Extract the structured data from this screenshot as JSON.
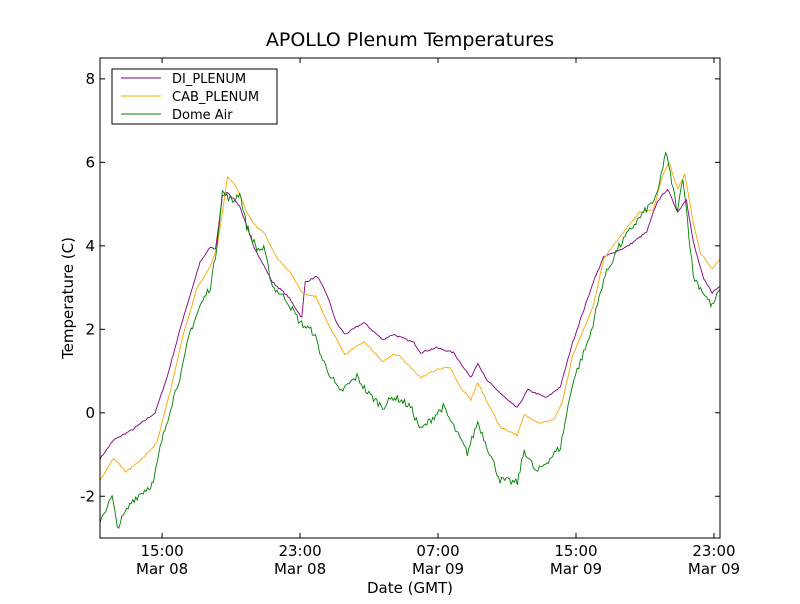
{
  "chart_data": {
    "type": "line",
    "title": "APOLLO Plenum Temperatures",
    "xlabel": "Date (GMT)",
    "ylabel": "Temperature (C)",
    "x_units": "hours since Mar 08 00:00 GMT",
    "xlim": [
      11.4,
      47.35
    ],
    "ylim": [
      -3,
      8.5
    ],
    "grid": false,
    "legend_position": "top-left",
    "x_ticks": [
      {
        "value": 15,
        "time": "15:00",
        "date": "Mar 08"
      },
      {
        "value": 23,
        "time": "23:00",
        "date": "Mar 08"
      },
      {
        "value": 31,
        "time": "07:00",
        "date": "Mar 09"
      },
      {
        "value": 39,
        "time": "15:00",
        "date": "Mar 09"
      },
      {
        "value": 47,
        "time": "23:00",
        "date": "Mar 09"
      }
    ],
    "y_ticks": [
      {
        "value": -2,
        "label": "-2"
      },
      {
        "value": 0,
        "label": "0"
      },
      {
        "value": 2,
        "label": "2"
      },
      {
        "value": 4,
        "label": "4"
      },
      {
        "value": 6,
        "label": "6"
      },
      {
        "value": 8,
        "label": "8"
      }
    ],
    "series": [
      {
        "name": "DI_PLENUM",
        "color": "#800080",
        "noise": 0.04,
        "points": [
          [
            11.4,
            -1.1
          ],
          [
            12.2,
            -0.65
          ],
          [
            13.3,
            -0.4
          ],
          [
            14.6,
            0
          ],
          [
            15.3,
            0.87
          ],
          [
            16.2,
            2.24
          ],
          [
            17.2,
            3.6
          ],
          [
            17.8,
            3.97
          ],
          [
            18.1,
            3.92
          ],
          [
            18.5,
            5.19
          ],
          [
            18.8,
            5.29
          ],
          [
            19.5,
            4.95
          ],
          [
            20.3,
            4.0
          ],
          [
            21.4,
            3.13
          ],
          [
            22.3,
            2.79
          ],
          [
            23.1,
            2.28
          ],
          [
            23.3,
            3.13
          ],
          [
            24.0,
            3.27
          ],
          [
            24.6,
            2.79
          ],
          [
            25.1,
            2.16
          ],
          [
            25.6,
            1.88
          ],
          [
            26.7,
            2.16
          ],
          [
            27.8,
            1.75
          ],
          [
            28.4,
            1.88
          ],
          [
            29.6,
            1.68
          ],
          [
            30.0,
            1.44
          ],
          [
            30.9,
            1.56
          ],
          [
            31.9,
            1.44
          ],
          [
            32.9,
            0.84
          ],
          [
            33.3,
            1.2
          ],
          [
            33.8,
            0.79
          ],
          [
            35.2,
            0.24
          ],
          [
            35.6,
            0.12
          ],
          [
            36.2,
            0.55
          ],
          [
            37.3,
            0.36
          ],
          [
            38.1,
            0.63
          ],
          [
            38.8,
            1.68
          ],
          [
            40.0,
            3.13
          ],
          [
            40.6,
            3.73
          ],
          [
            42.0,
            3.99
          ],
          [
            43.1,
            4.33
          ],
          [
            43.7,
            5.05
          ],
          [
            44.3,
            5.36
          ],
          [
            44.9,
            4.81
          ],
          [
            45.4,
            5.12
          ],
          [
            45.8,
            4.09
          ],
          [
            46.4,
            3.2
          ],
          [
            46.9,
            2.88
          ],
          [
            47.35,
            3.03
          ]
        ]
      },
      {
        "name": "CAB_PLENUM",
        "color": "#FFA500",
        "noise": 0.04,
        "points": [
          [
            11.4,
            -1.61
          ],
          [
            12.2,
            -1.08
          ],
          [
            12.9,
            -1.42
          ],
          [
            13.9,
            -1.08
          ],
          [
            14.7,
            -0.72
          ],
          [
            15.5,
            0.55
          ],
          [
            16.2,
            1.83
          ],
          [
            17.0,
            2.96
          ],
          [
            17.8,
            3.51
          ],
          [
            18.2,
            3.99
          ],
          [
            18.8,
            5.65
          ],
          [
            19.3,
            5.43
          ],
          [
            19.9,
            4.81
          ],
          [
            20.5,
            4.45
          ],
          [
            20.9,
            4.33
          ],
          [
            21.7,
            3.68
          ],
          [
            22.4,
            3.37
          ],
          [
            23.2,
            2.84
          ],
          [
            23.9,
            2.79
          ],
          [
            24.7,
            2.07
          ],
          [
            25.6,
            1.39
          ],
          [
            26.7,
            1.71
          ],
          [
            27.8,
            1.23
          ],
          [
            28.4,
            1.39
          ],
          [
            28.8,
            1.35
          ],
          [
            30.0,
            0.84
          ],
          [
            30.9,
            1.03
          ],
          [
            31.7,
            1.1
          ],
          [
            32.3,
            0.6
          ],
          [
            32.9,
            0.31
          ],
          [
            33.3,
            0.72
          ],
          [
            33.8,
            0.31
          ],
          [
            34.6,
            -0.34
          ],
          [
            35.6,
            -0.53
          ],
          [
            36.0,
            -0.05
          ],
          [
            36.9,
            -0.24
          ],
          [
            37.7,
            -0.17
          ],
          [
            38.2,
            0.24
          ],
          [
            38.8,
            1.35
          ],
          [
            40.0,
            2.55
          ],
          [
            40.6,
            3.68
          ],
          [
            42.0,
            4.47
          ],
          [
            42.7,
            4.81
          ],
          [
            43.5,
            4.88
          ],
          [
            44.0,
            5.67
          ],
          [
            44.4,
            6.0
          ],
          [
            44.9,
            5.36
          ],
          [
            45.3,
            5.72
          ],
          [
            45.8,
            4.57
          ],
          [
            46.2,
            3.85
          ],
          [
            46.9,
            3.44
          ],
          [
            47.35,
            3.68
          ]
        ]
      },
      {
        "name": "Dome Air",
        "color": "#008000",
        "noise": 0.18,
        "points": [
          [
            11.4,
            -2.57
          ],
          [
            12.1,
            -2.02
          ],
          [
            12.4,
            -2.74
          ],
          [
            13.3,
            -2.09
          ],
          [
            14.5,
            -1.68
          ],
          [
            14.9,
            -0.82
          ],
          [
            15.5,
            0.14
          ],
          [
            16.2,
            1.1
          ],
          [
            16.6,
            1.92
          ],
          [
            17.2,
            2.55
          ],
          [
            17.8,
            3.03
          ],
          [
            18.1,
            3.75
          ],
          [
            18.5,
            5.29
          ],
          [
            19.1,
            5.05
          ],
          [
            19.5,
            5.29
          ],
          [
            19.9,
            4.47
          ],
          [
            20.5,
            3.92
          ],
          [
            20.9,
            3.92
          ],
          [
            21.4,
            3.03
          ],
          [
            22.2,
            2.72
          ],
          [
            23.0,
            2.16
          ],
          [
            23.8,
            1.92
          ],
          [
            24.3,
            1.27
          ],
          [
            25.3,
            0.48
          ],
          [
            26.3,
            0.87
          ],
          [
            26.9,
            0.48
          ],
          [
            27.8,
            0.14
          ],
          [
            28.4,
            0.38
          ],
          [
            28.8,
            0.31
          ],
          [
            29.4,
            0.14
          ],
          [
            30.0,
            -0.41
          ],
          [
            31.3,
            0.14
          ],
          [
            32.7,
            -0.96
          ],
          [
            33.3,
            -0.22
          ],
          [
            34.6,
            -1.61
          ],
          [
            35.6,
            -1.68
          ],
          [
            36.0,
            -0.89
          ],
          [
            36.7,
            -1.44
          ],
          [
            38.1,
            -0.82
          ],
          [
            38.8,
            0.72
          ],
          [
            39.8,
            1.83
          ],
          [
            40.6,
            3.2
          ],
          [
            41.4,
            3.92
          ],
          [
            42.3,
            4.47
          ],
          [
            43.7,
            5.19
          ],
          [
            44.2,
            6.25
          ],
          [
            44.9,
            4.81
          ],
          [
            45.2,
            5.67
          ],
          [
            45.8,
            3.27
          ],
          [
            46.9,
            2.55
          ],
          [
            47.35,
            2.96
          ]
        ]
      }
    ]
  }
}
